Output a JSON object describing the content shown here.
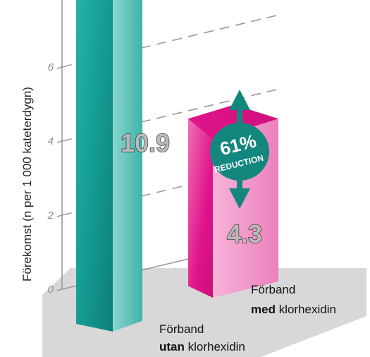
{
  "chart_data": {
    "type": "bar",
    "ylabel": "Förekomst (n per 1 000 kateterdygn)",
    "ylim": [
      0,
      12
    ],
    "yticks": [
      "0",
      "2",
      "4",
      "6",
      "8",
      "10",
      "12"
    ],
    "grid": true,
    "categories": [
      {
        "line1": "Förband",
        "bold": "utan",
        "rest": " klorhexidin"
      },
      {
        "line1": "Förband",
        "bold": "med",
        "rest": " klorhexidin"
      }
    ],
    "values": [
      10.9,
      4.3
    ],
    "value_labels": [
      "10.9",
      "4.3"
    ],
    "colors": [
      "#1fa89f",
      "#e0148a"
    ],
    "annotation": {
      "percent": "61%",
      "text": "REDUCTION",
      "color": "#13877e"
    }
  }
}
